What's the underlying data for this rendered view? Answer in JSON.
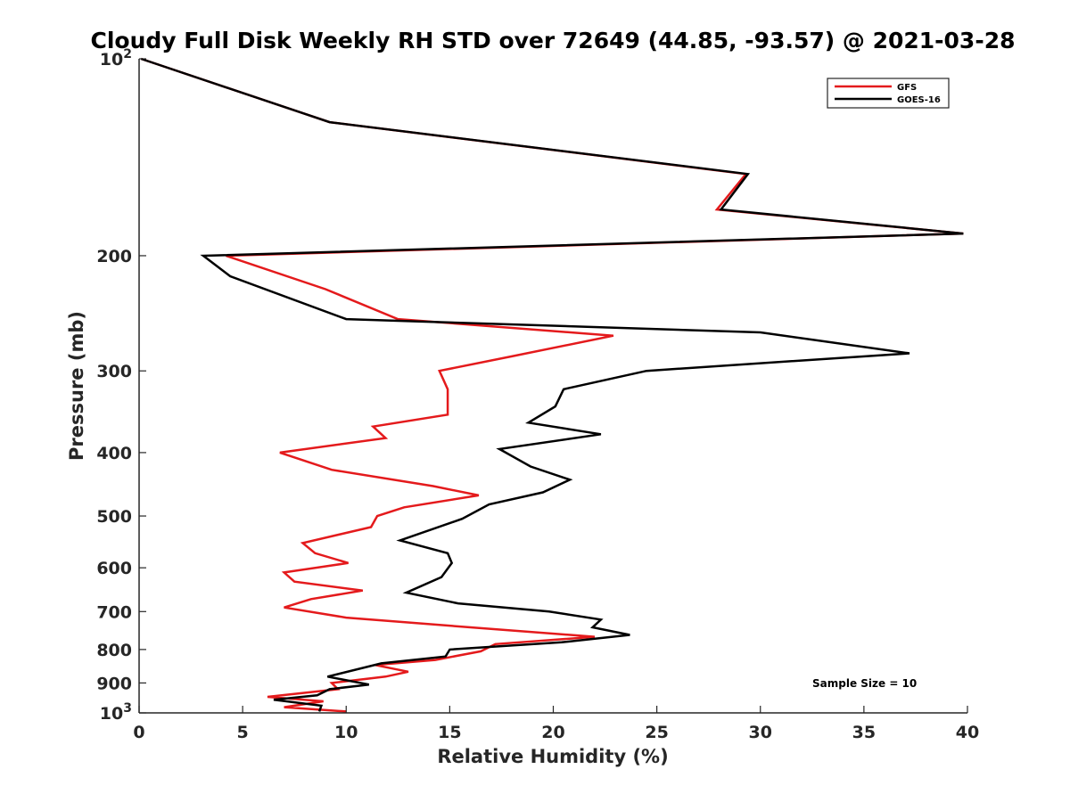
{
  "chart_data": {
    "type": "line",
    "title": "Cloudy Full Disk Weekly RH STD over 72649 (44.85, -93.57) @ 2021-03-28",
    "xlabel": "Relative Humidity (%)",
    "ylabel": "Pressure (mb)",
    "xlim": [
      0,
      40
    ],
    "ylim": [
      100,
      1000
    ],
    "yscale": "log",
    "y_reversed": true,
    "grid": false,
    "legend_position": "top-right",
    "x_ticks": [
      "0",
      "5",
      "10",
      "15",
      "20",
      "25",
      "30",
      "35",
      "40"
    ],
    "y_ticks": [
      {
        "value": 100,
        "base": "10",
        "exp": "2"
      },
      {
        "value": 200,
        "label": "200"
      },
      {
        "value": 300,
        "label": "300"
      },
      {
        "value": 400,
        "label": "400"
      },
      {
        "value": 500,
        "label": "500"
      },
      {
        "value": 600,
        "label": "600"
      },
      {
        "value": 700,
        "label": "700"
      },
      {
        "value": 800,
        "label": "800"
      },
      {
        "value": 900,
        "label": "900"
      },
      {
        "value": 1000,
        "base": "10",
        "exp": "3"
      }
    ],
    "annotation": "Sample Size = 10",
    "series": [
      {
        "name": "GFS",
        "color": "#e41a1c",
        "points": [
          [
            0.1,
            100
          ],
          [
            9.2,
            125
          ],
          [
            29.3,
            150
          ],
          [
            27.9,
            170
          ],
          [
            39.8,
            185
          ],
          [
            4.2,
            200
          ],
          [
            9.0,
            225
          ],
          [
            12.5,
            250
          ],
          [
            22.9,
            265
          ],
          [
            18.0,
            285
          ],
          [
            14.5,
            300
          ],
          [
            14.9,
            320
          ],
          [
            14.9,
            350
          ],
          [
            11.3,
            365
          ],
          [
            11.9,
            380
          ],
          [
            6.8,
            400
          ],
          [
            9.3,
            425
          ],
          [
            14.2,
            450
          ],
          [
            16.4,
            465
          ],
          [
            12.8,
            485
          ],
          [
            11.5,
            500
          ],
          [
            11.2,
            520
          ],
          [
            7.9,
            550
          ],
          [
            8.5,
            570
          ],
          [
            10.1,
            590
          ],
          [
            7.0,
            610
          ],
          [
            7.5,
            630
          ],
          [
            10.8,
            650
          ],
          [
            8.3,
            670
          ],
          [
            7.0,
            690
          ],
          [
            10.0,
            715
          ],
          [
            16.0,
            740
          ],
          [
            22.0,
            765
          ],
          [
            17.2,
            785
          ],
          [
            16.5,
            805
          ],
          [
            14.3,
            830
          ],
          [
            11.4,
            845
          ],
          [
            13.0,
            865
          ],
          [
            11.9,
            880
          ],
          [
            9.3,
            900
          ],
          [
            9.6,
            920
          ],
          [
            6.2,
            945
          ],
          [
            8.9,
            960
          ],
          [
            7.0,
            980
          ],
          [
            10.0,
            995
          ]
        ]
      },
      {
        "name": "GOES-16",
        "color": "#000000",
        "points": [
          [
            0.1,
            100
          ],
          [
            9.2,
            125
          ],
          [
            29.4,
            150
          ],
          [
            28.1,
            170
          ],
          [
            39.8,
            185
          ],
          [
            3.1,
            200
          ],
          [
            4.4,
            215
          ],
          [
            10.0,
            250
          ],
          [
            30.0,
            262
          ],
          [
            37.2,
            282
          ],
          [
            24.5,
            300
          ],
          [
            20.5,
            320
          ],
          [
            20.1,
            340
          ],
          [
            18.8,
            360
          ],
          [
            22.3,
            375
          ],
          [
            17.4,
            395
          ],
          [
            18.9,
            420
          ],
          [
            20.8,
            440
          ],
          [
            19.5,
            460
          ],
          [
            16.9,
            480
          ],
          [
            15.6,
            505
          ],
          [
            12.6,
            545
          ],
          [
            14.9,
            570
          ],
          [
            15.1,
            590
          ],
          [
            14.6,
            620
          ],
          [
            12.9,
            655
          ],
          [
            15.4,
            680
          ],
          [
            19.8,
            700
          ],
          [
            22.3,
            720
          ],
          [
            21.9,
            740
          ],
          [
            23.7,
            760
          ],
          [
            20.4,
            780
          ],
          [
            15.0,
            800
          ],
          [
            14.8,
            820
          ],
          [
            11.7,
            840
          ],
          [
            9.1,
            880
          ],
          [
            11.1,
            905
          ],
          [
            9.2,
            920
          ],
          [
            8.6,
            940
          ],
          [
            6.5,
            955
          ],
          [
            8.8,
            975
          ],
          [
            8.7,
            995
          ]
        ]
      }
    ]
  }
}
